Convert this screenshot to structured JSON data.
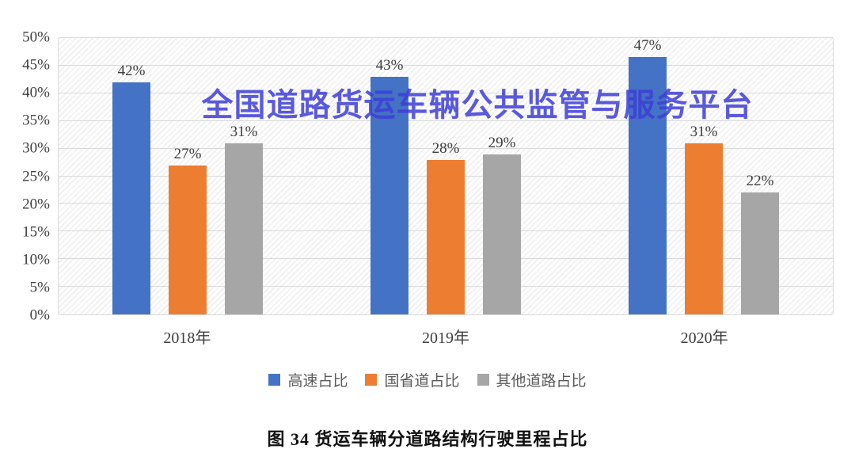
{
  "watermark": {
    "text": "全国道路货运车辆公共监管与服务平台",
    "color": "#3e3ed8"
  },
  "caption": {
    "text": "图 34 货运车辆分道路结构行驶里程占比"
  },
  "chart_data": {
    "type": "bar",
    "title": "图 34 货运车辆分道路结构行驶里程占比",
    "xlabel": "",
    "ylabel": "",
    "categories": [
      "2018年",
      "2019年",
      "2020年"
    ],
    "series": [
      {
        "name": "高速占比",
        "key": "highway",
        "color": "#4472c4",
        "values": [
          42,
          43,
          47
        ]
      },
      {
        "name": "国省道占比",
        "key": "national-provincial-road",
        "color": "#ed7d31",
        "values": [
          27,
          28,
          31
        ]
      },
      {
        "name": "其他道路占比",
        "key": "other-roads",
        "color": "#a6a6a6",
        "values": [
          31,
          29,
          22
        ]
      }
    ],
    "data_label_suffix": "%",
    "ylim": [
      0,
      50
    ],
    "ytick_step": 5,
    "ytick_labels": [
      "0%",
      "5%",
      "10%",
      "15%",
      "20%",
      "25%",
      "30%",
      "35%",
      "40%",
      "45%",
      "50%"
    ],
    "grid": true,
    "grid_color": "#d9d9d9",
    "legend_position": "bottom"
  }
}
